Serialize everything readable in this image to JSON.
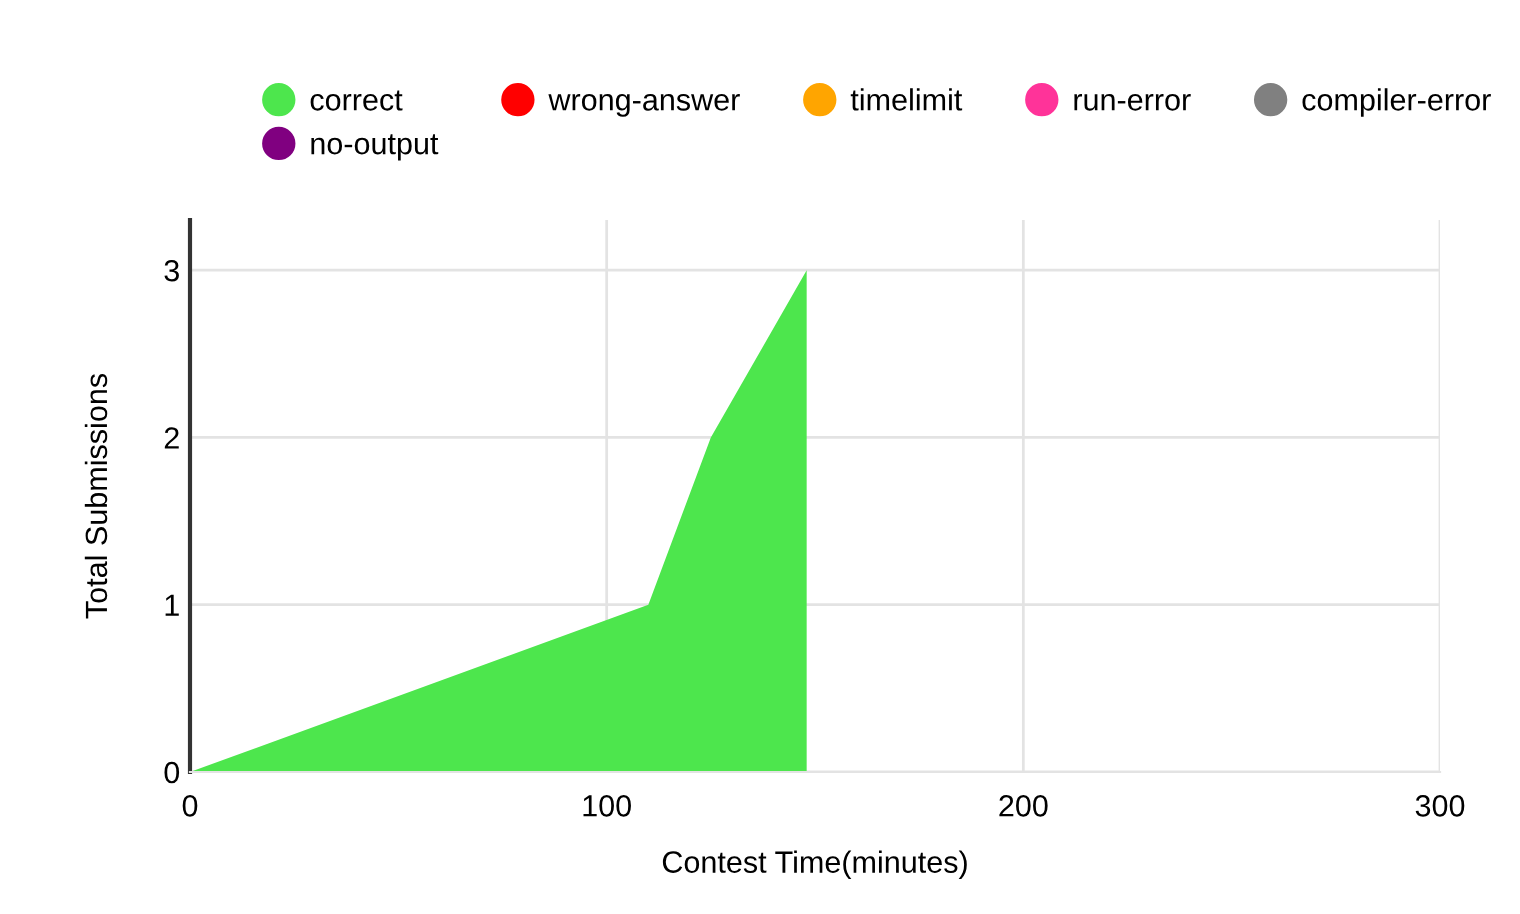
{
  "chart_data": {
    "type": "area",
    "xlabel": "Contest Time(minutes)",
    "ylabel": "Total Submissions",
    "xlim": [
      0,
      300
    ],
    "xticks": [
      0,
      100,
      200,
      300
    ],
    "ylim": [
      0,
      3.3
    ],
    "yticks": [
      0,
      1,
      2,
      3
    ],
    "grid": true,
    "legend": "top left",
    "series": [
      {
        "name": "correct",
        "color": "#4de64d",
        "x": [
          0,
          110,
          125,
          148,
          148,
          300
        ],
        "values": [
          0,
          1,
          2,
          3,
          0,
          0
        ]
      },
      {
        "name": "wrong-answer",
        "color": "#ff0000"
      },
      {
        "name": "timelimit",
        "color": "#ffa500"
      },
      {
        "name": "run-error",
        "color": "#ff3399"
      },
      {
        "name": "compiler-error",
        "color": "#808080"
      },
      {
        "name": "no-output",
        "color": "#800080"
      }
    ]
  }
}
